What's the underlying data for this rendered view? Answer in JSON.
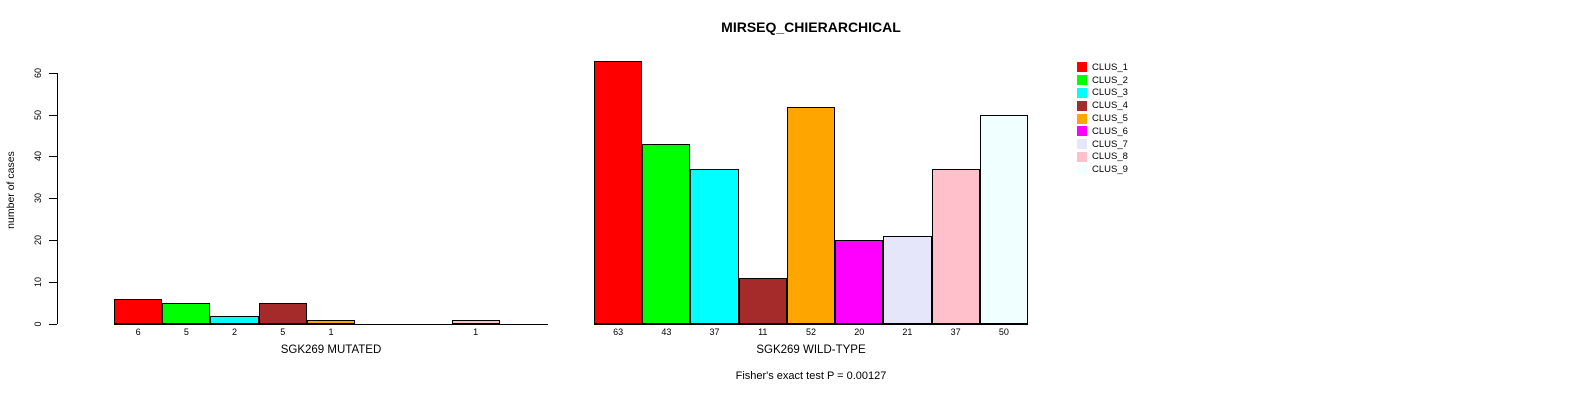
{
  "chart_data": {
    "type": "bar",
    "title": "MIRSEQ_CHIERARCHICAL",
    "ylabel": "number of cases",
    "xlabel": "",
    "ylim": [
      0,
      60
    ],
    "yticks": [
      0,
      10,
      20,
      30,
      40,
      50,
      60
    ],
    "grid": false,
    "legend_position": "right",
    "footnote": "Fisher's exact test P = 0.00127",
    "legend": [
      {
        "label": "CLUS_1",
        "color": "#FF0000"
      },
      {
        "label": "CLUS_2",
        "color": "#00FF00"
      },
      {
        "label": "CLUS_3",
        "color": "#00FFFF"
      },
      {
        "label": "CLUS_4",
        "color": "#A52A2A"
      },
      {
        "label": "CLUS_5",
        "color": "#FFA500"
      },
      {
        "label": "CLUS_6",
        "color": "#FF00FF"
      },
      {
        "label": "CLUS_7",
        "color": "#E6E6FA"
      },
      {
        "label": "CLUS_8",
        "color": "#FFC0CB"
      },
      {
        "label": "CLUS_9",
        "color": "#F0FFFF"
      }
    ],
    "groups": [
      {
        "label": "SGK269 MUTATED",
        "values": [
          6,
          5,
          2,
          5,
          1,
          0,
          0,
          1,
          0
        ]
      },
      {
        "label": "SGK269 WILD-TYPE",
        "values": [
          63,
          43,
          37,
          11,
          52,
          20,
          21,
          37,
          50
        ]
      }
    ]
  }
}
